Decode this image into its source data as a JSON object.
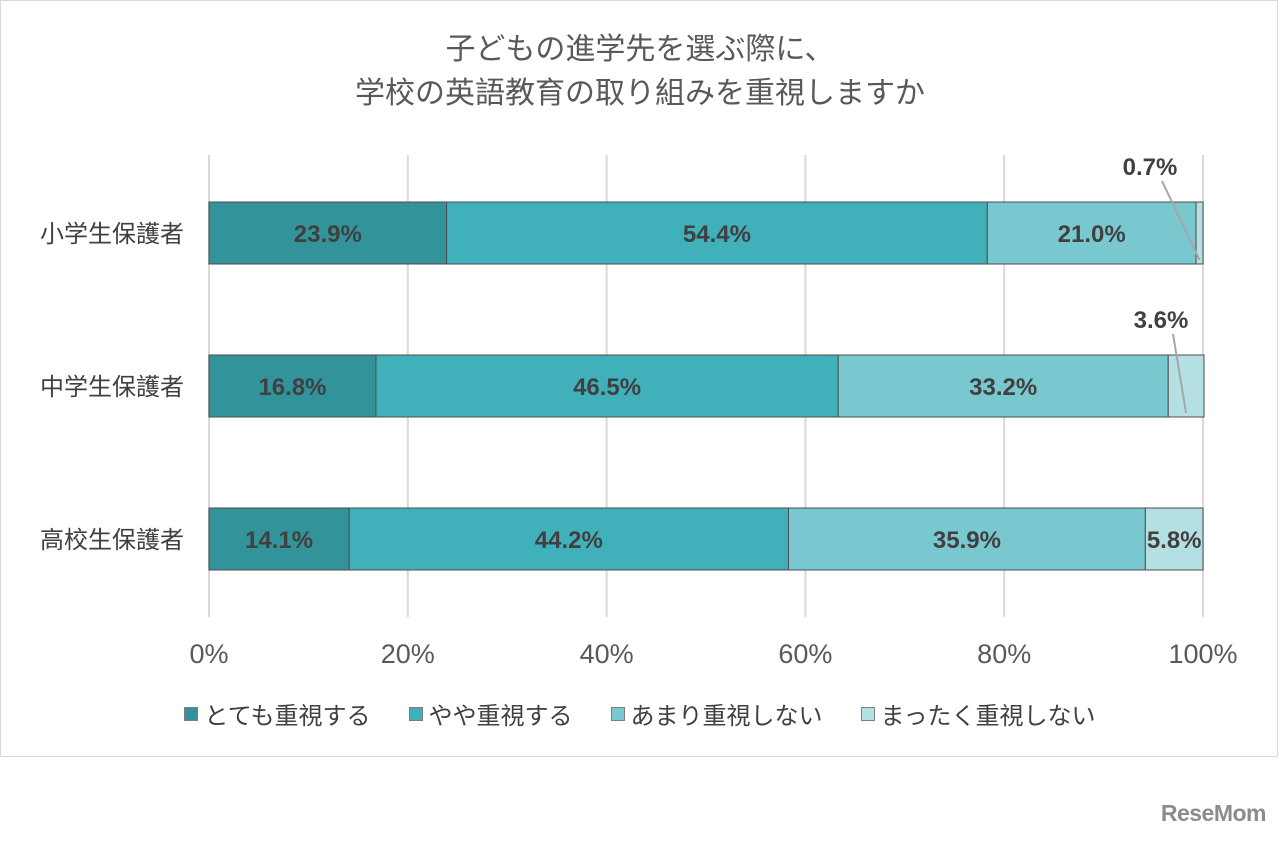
{
  "chart_data": {
    "type": "bar",
    "orientation": "horizontal",
    "stacked": true,
    "title_lines": [
      "子どもの進学先を選ぶ際に、",
      "学校の英語教育の取り組みを重視しますか"
    ],
    "categories": [
      "小学生保護者",
      "中学生保護者",
      "高校生保護者"
    ],
    "series": [
      {
        "name": "とても重視する",
        "color": "#33939a",
        "values": [
          23.9,
          16.8,
          14.1
        ],
        "labels": [
          "23.9%",
          "16.8%",
          "14.1%"
        ]
      },
      {
        "name": "やや重視する",
        "color": "#40b1ba",
        "values": [
          54.4,
          46.5,
          44.2
        ],
        "labels": [
          "54.4%",
          "46.5%",
          "44.2%"
        ]
      },
      {
        "name": "あまり重視しない",
        "color": "#79c8cf",
        "values": [
          21.0,
          33.2,
          35.9
        ],
        "labels": [
          "21.0%",
          "33.2%",
          "35.9%"
        ]
      },
      {
        "name": "まったく重視しない",
        "color": "#b4dfe3",
        "values": [
          0.7,
          3.6,
          5.8
        ],
        "labels": [
          "0.7%",
          "3.6%",
          "5.8%"
        ]
      }
    ],
    "xlim": [
      0,
      100
    ],
    "x_ticks": [
      "0%",
      "20%",
      "40%",
      "60%",
      "80%",
      "100%"
    ],
    "grid": true,
    "legend_position": "bottom"
  },
  "watermark": "ReseMom"
}
